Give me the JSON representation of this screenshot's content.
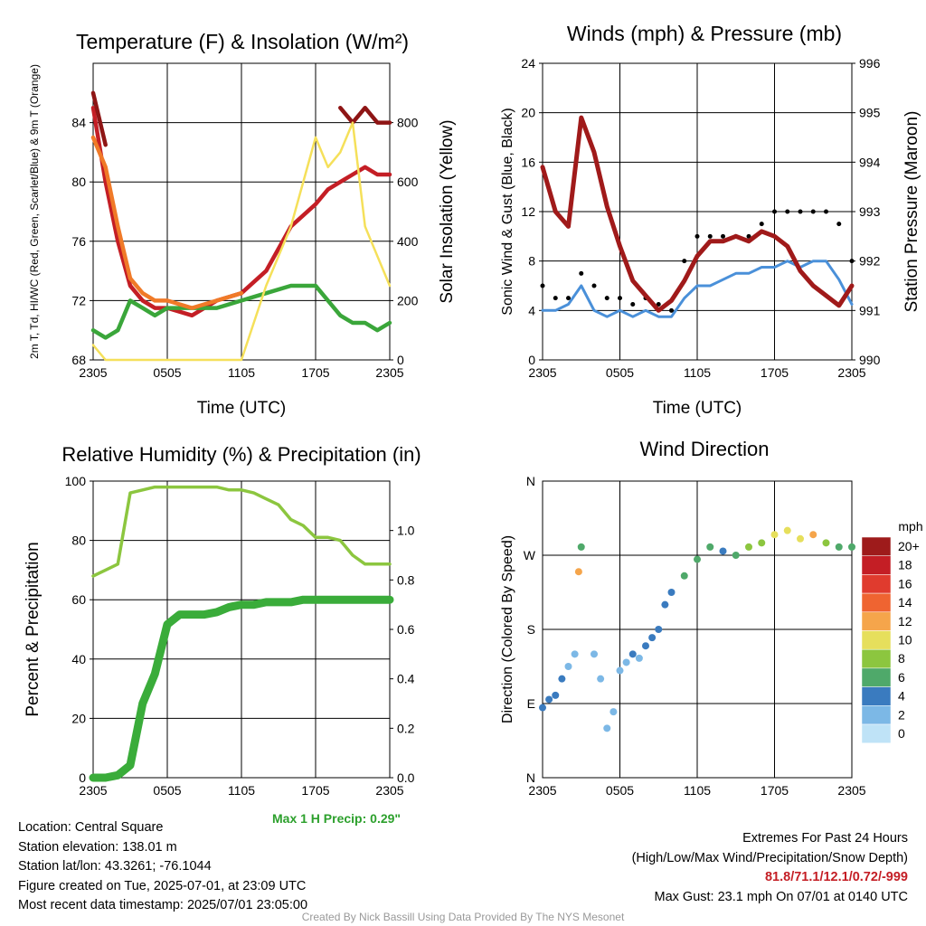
{
  "x_ticks": [
    "2305",
    "0505",
    "1105",
    "1705",
    "2305"
  ],
  "panels": {
    "temp": {
      "title": "Temperature (F) & Insolation (W/m²)",
      "ylabel_left": "2m T, Td, HI/WC (Red, Green, Scarlet/Blue) & 9m T (Orange)",
      "ylabel_right": "Solar Insolation (Yellow)",
      "xlabel": "Time (UTC)"
    },
    "wind": {
      "title": "Winds (mph) & Pressure (mb)",
      "ylabel_left": "Sonic Wind & Gust (Blue, Black)",
      "ylabel_right": "Station Pressure (Maroon)",
      "xlabel": "Time (UTC)"
    },
    "rh": {
      "title": "Relative Humidity (%) & Precipitation (in)",
      "ylabel_left": "Percent & Precipitation"
    },
    "dir": {
      "title": "Wind Direction",
      "ylabel_left": "Direction (Colored By Speed)"
    }
  },
  "colorbar": {
    "title": "mph",
    "labels": [
      "20+",
      "18",
      "16",
      "14",
      "12",
      "10",
      "8",
      "6",
      "4",
      "2",
      "0"
    ],
    "colors": [
      "#9e1b1b",
      "#c41e25",
      "#e03b2e",
      "#ef6431",
      "#f5a54b",
      "#e6df5c",
      "#8cc63f",
      "#4fa96a",
      "#3a7bbf",
      "#7cb8e6",
      "#bfe3f7"
    ]
  },
  "max_precip": "Max 1 H Precip: 0.29\"",
  "info_left": [
    "Location: Central Square",
    "Station elevation: 138.01 m",
    "Station lat/lon: 43.3261; -76.1044",
    "Figure created on Tue, 2025-07-01, at 23:09 UTC",
    "Most recent data timestamp: 2025/07/01 23:05:00"
  ],
  "info_right": {
    "line1": "Extremes For Past 24 Hours",
    "line2": "(High/Low/Max Wind/Precipitation/Snow Depth)",
    "extremes": "81.8/71.1/12.1/0.72/-999",
    "gust": "Max Gust: 23.1 mph On 07/01 at 0140 UTC"
  },
  "credit": "Created By Nick Bassill Using Data Provided By The NYS Mesonet",
  "chart_data": [
    {
      "type": "line",
      "title": "Temperature (F) & Insolation (W/m²)",
      "x": [
        0,
        1,
        2,
        3,
        4,
        5,
        6,
        8,
        10,
        12,
        14,
        16,
        18,
        19,
        20,
        21,
        22,
        23,
        24
      ],
      "ylim": [
        68,
        88
      ],
      "y2lim": [
        0,
        1000
      ],
      "series": [
        {
          "name": "2m T",
          "color": "#c41e25",
          "values": [
            85,
            80,
            76,
            73,
            72,
            71.5,
            71.5,
            71,
            72,
            72.5,
            74,
            77,
            78.5,
            79.5,
            80,
            80.5,
            81,
            80.5,
            80.5
          ]
        },
        {
          "name": "Td",
          "color": "#3aa63a",
          "values": [
            70,
            69.5,
            70,
            72,
            71.5,
            71,
            71.5,
            71.5,
            71.5,
            72,
            72.5,
            73,
            73,
            72,
            71,
            70.5,
            70.5,
            70,
            70.5
          ]
        },
        {
          "name": "HI/WC",
          "color": "#8e1515",
          "values": [
            86,
            82.5,
            null,
            null,
            null,
            null,
            null,
            null,
            null,
            null,
            null,
            null,
            null,
            null,
            85,
            84,
            85,
            84,
            84
          ]
        },
        {
          "name": "9m T",
          "color": "#f07a28",
          "values": [
            83,
            81,
            77,
            73.5,
            72.5,
            72,
            72,
            71.5,
            72,
            72.5,
            null,
            null,
            null,
            null,
            null,
            null,
            null,
            null,
            null
          ]
        },
        {
          "name": "Solar Insolation",
          "axis": "right",
          "color": "#f5e05a",
          "values": [
            50,
            0,
            0,
            0,
            0,
            0,
            0,
            0,
            0,
            0,
            250,
            450,
            750,
            650,
            700,
            800,
            450,
            350,
            250
          ]
        }
      ]
    },
    {
      "type": "line",
      "title": "Winds (mph) & Pressure (mb)",
      "x": [
        0,
        1,
        2,
        3,
        4,
        5,
        6,
        7,
        8,
        9,
        10,
        11,
        12,
        13,
        14,
        15,
        16,
        17,
        18,
        19,
        20,
        21,
        22,
        23,
        24
      ],
      "ylim": [
        0,
        24
      ],
      "y2lim": [
        990,
        996
      ],
      "series": [
        {
          "name": "Sonic Wind",
          "color": "#4a90d9",
          "values": [
            4,
            4,
            4.5,
            6,
            4,
            3.5,
            4,
            3.5,
            4,
            3.5,
            3.5,
            5,
            6,
            6,
            6.5,
            7,
            7,
            7.5,
            7.5,
            8,
            7.5,
            8,
            8,
            6.5,
            4.5
          ]
        },
        {
          "name": "Gust",
          "color": "#000000",
          "values": [
            6,
            5,
            5,
            7,
            6,
            5,
            5,
            4.5,
            5,
            4.5,
            4,
            8,
            10,
            10,
            10,
            10,
            10,
            11,
            12,
            12,
            12,
            12,
            12,
            11,
            8
          ]
        },
        {
          "name": "Station Pressure",
          "axis": "right",
          "color": "#a01a1a",
          "values": [
            993.9,
            993.0,
            992.7,
            994.9,
            994.2,
            993.1,
            992.3,
            991.6,
            991.3,
            991.0,
            991.2,
            991.6,
            992.1,
            992.4,
            992.4,
            992.5,
            992.4,
            992.6,
            992.5,
            992.3,
            991.8,
            991.5,
            991.3,
            991.1,
            991.5
          ]
        }
      ]
    },
    {
      "type": "line",
      "title": "Relative Humidity (%) & Precipitation (in)",
      "x": [
        0,
        1,
        2,
        3,
        4,
        5,
        6,
        7,
        8,
        9,
        10,
        11,
        12,
        13,
        14,
        15,
        16,
        17,
        18,
        19,
        20,
        21,
        22,
        23,
        24
      ],
      "ylim": [
        0,
        100
      ],
      "y2lim": [
        0,
        1.2
      ],
      "series": [
        {
          "name": "Relative Humidity",
          "color": "#8cc63f",
          "values": [
            68,
            70,
            72,
            96,
            97,
            98,
            98,
            98,
            98,
            98,
            98,
            97,
            97,
            96,
            94,
            92,
            87,
            85,
            81,
            81,
            80,
            75,
            72,
            72,
            72
          ]
        },
        {
          "name": "Precipitation",
          "axis": "right",
          "color": "#3aac3a",
          "values": [
            0,
            0,
            0.01,
            0.05,
            0.3,
            0.42,
            0.62,
            0.66,
            0.66,
            0.66,
            0.67,
            0.69,
            0.7,
            0.7,
            0.71,
            0.71,
            0.71,
            0.72,
            0.72,
            0.72,
            0.72,
            0.72,
            0.72,
            0.72,
            0.72
          ]
        }
      ]
    },
    {
      "type": "scatter",
      "title": "Wind Direction",
      "yticklabels": [
        "N",
        "E",
        "S",
        "W",
        "N"
      ],
      "ylim": [
        0,
        360
      ],
      "x": [
        0,
        0.5,
        1,
        1.5,
        2,
        2.5,
        2.8,
        3,
        4,
        4.5,
        5,
        5.5,
        6,
        6.5,
        7,
        7.5,
        8,
        8.5,
        9,
        9.5,
        10,
        11,
        12,
        13,
        14,
        15,
        16,
        17,
        18,
        19,
        20,
        21,
        22,
        23,
        24
      ],
      "direction_deg": [
        85,
        95,
        100,
        120,
        135,
        150,
        250,
        280,
        150,
        120,
        60,
        80,
        130,
        140,
        150,
        145,
        160,
        170,
        180,
        210,
        225,
        245,
        265,
        280,
        275,
        270,
        280,
        285,
        295,
        300,
        290,
        295,
        285,
        280,
        280
      ],
      "speed_mph": [
        4,
        4,
        3,
        3,
        2,
        2,
        12,
        6,
        2,
        2,
        2,
        2,
        2,
        2,
        3,
        2,
        3,
        3,
        3,
        3,
        4,
        5,
        5,
        5,
        4,
        6,
        7,
        8,
        9,
        10,
        9,
        11,
        8,
        6,
        6
      ]
    }
  ]
}
